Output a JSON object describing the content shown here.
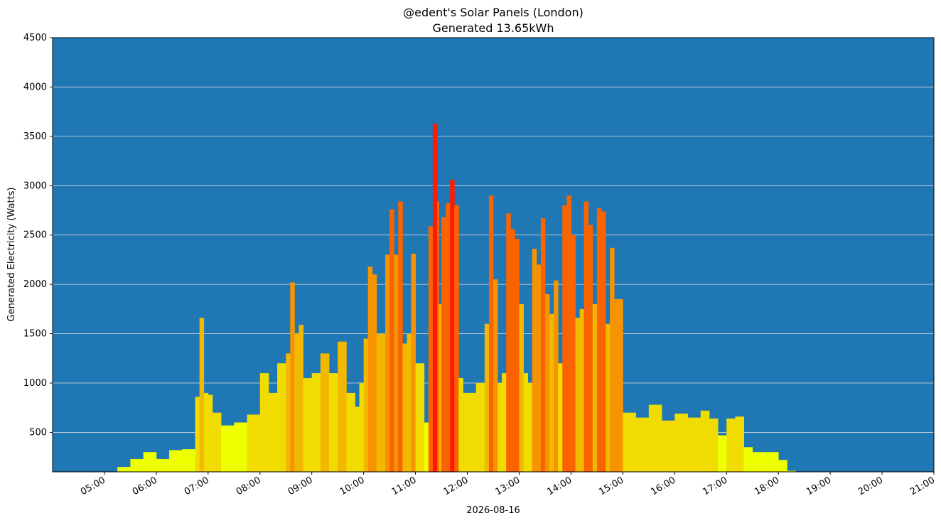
{
  "chart_data": {
    "type": "bar",
    "title": "@edent's Solar Panels (London)",
    "subtitle": "Generated 13.65kWh",
    "xlabel": "2026-08-16",
    "ylabel": "Generated Electricity (Watts)",
    "date": "2026-08-16",
    "xlim": [
      "04:00",
      "21:00"
    ],
    "ylim": [
      100,
      4500
    ],
    "yticks": [
      500,
      1000,
      1500,
      2000,
      2500,
      3000,
      3500,
      4000,
      4500
    ],
    "xticks": [
      "05:00",
      "06:00",
      "07:00",
      "08:00",
      "09:00",
      "10:00",
      "11:00",
      "12:00",
      "13:00",
      "14:00",
      "15:00",
      "16:00",
      "17:00",
      "18:00",
      "19:00",
      "20:00",
      "21:00"
    ],
    "grid": "horizontal",
    "background_color": "#1f77b4",
    "color_scale": [
      "#eeff00",
      "#f0dc00",
      "#f2b800",
      "#f59400",
      "#fa6400",
      "#ff1a00"
    ],
    "series": [
      {
        "x": [
          "05:15",
          "05:30",
          "05:45",
          "06:00",
          "06:15",
          "06:30",
          "06:45",
          "06:50",
          "06:55",
          "07:00",
          "07:05",
          "07:15",
          "07:30",
          "07:45",
          "08:00",
          "08:10",
          "08:20",
          "08:30",
          "08:35",
          "08:40",
          "08:45",
          "08:50",
          "09:00",
          "09:10",
          "09:20",
          "09:30",
          "09:40",
          "09:50",
          "09:55",
          "10:00",
          "10:05",
          "10:10",
          "10:15",
          "10:20",
          "10:25",
          "10:30",
          "10:35",
          "10:40",
          "10:45",
          "10:50",
          "10:55",
          "11:00",
          "11:10",
          "11:15",
          "11:20",
          "11:25",
          "11:27",
          "11:30",
          "11:35",
          "11:40",
          "11:45",
          "11:50",
          "11:55",
          "12:00",
          "12:10",
          "12:20",
          "12:25",
          "12:30",
          "12:35",
          "12:40",
          "12:45",
          "12:50",
          "12:55",
          "13:00",
          "13:05",
          "13:10",
          "13:15",
          "13:20",
          "13:25",
          "13:30",
          "13:35",
          "13:40",
          "13:45",
          "13:50",
          "13:55",
          "14:00",
          "14:05",
          "14:10",
          "14:15",
          "14:20",
          "14:25",
          "14:30",
          "14:35",
          "14:40",
          "14:45",
          "14:50",
          "15:00",
          "15:15",
          "15:30",
          "15:45",
          "16:00",
          "16:15",
          "16:30",
          "16:40",
          "16:50",
          "17:00",
          "17:10",
          "17:20",
          "17:30",
          "17:45",
          "18:00",
          "18:10",
          "18:20",
          "18:30"
        ],
        "values": [
          150,
          230,
          300,
          230,
          320,
          330,
          860,
          1660,
          900,
          880,
          700,
          570,
          600,
          680,
          1100,
          900,
          1200,
          1300,
          2020,
          1500,
          1590,
          1050,
          1100,
          1300,
          1100,
          1420,
          900,
          760,
          1000,
          1450,
          2180,
          2100,
          1500,
          1500,
          2300,
          2760,
          2300,
          2840,
          1400,
          1500,
          2310,
          1200,
          600,
          2590,
          3630,
          2840,
          1800,
          2680,
          2820,
          3060,
          2800,
          1050,
          900,
          900,
          1000,
          1600,
          2900,
          2050,
          1000,
          1100,
          2720,
          2560,
          2460,
          1800,
          1100,
          1000,
          2360,
          2200,
          2670,
          1900,
          1700,
          2040,
          1200,
          2800,
          2900,
          2500,
          1660,
          1750,
          2840,
          2600,
          1800,
          2770,
          2740,
          1600,
          2370,
          1850,
          700,
          650,
          780,
          620,
          690,
          650,
          720,
          640,
          470,
          640,
          660,
          350,
          300,
          300,
          220,
          110,
          0,
          0
        ]
      }
    ]
  }
}
